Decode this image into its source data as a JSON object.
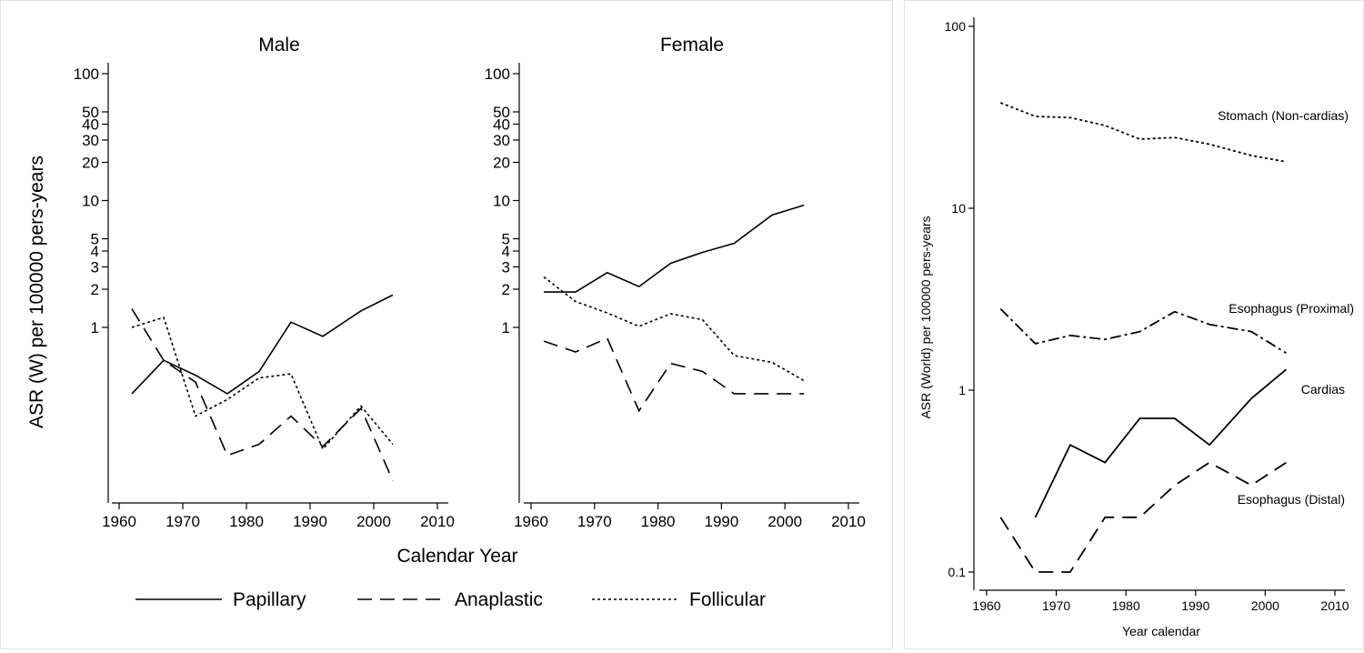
{
  "chart_data": [
    {
      "type": "line",
      "y_scale": "log",
      "ylabel": "ASR (W) per 100000 pers-years",
      "xlabel": "Calendar Year",
      "xlim": [
        1960,
        2010
      ],
      "x_ticks": [
        1960,
        1970,
        1980,
        1990,
        2000,
        2010
      ],
      "y_ticks": [
        1,
        2,
        3,
        4,
        5,
        10,
        20,
        30,
        40,
        50,
        100
      ],
      "legend": {
        "placement": "bottom",
        "entries": [
          {
            "name": "Papillary",
            "dash": "solid"
          },
          {
            "name": "Anaplastic",
            "dash": "longdash"
          },
          {
            "name": "Follicular",
            "dash": "dotted"
          }
        ]
      },
      "panels": [
        {
          "title": "Male",
          "series": [
            {
              "name": "Papillary",
              "x": [
                1962,
                1967,
                1972,
                1977,
                1982,
                1987,
                1992,
                1998,
                2003
              ],
              "y": [
                0.3,
                0.55,
                0.42,
                0.3,
                0.45,
                1.1,
                0.85,
                1.35,
                1.8
              ]
            },
            {
              "name": "Anaplastic",
              "x": [
                1962,
                1967,
                1972,
                1977,
                1982,
                1987,
                1992,
                1998,
                2003
              ],
              "y": [
                1.4,
                0.55,
                0.37,
                0.098,
                0.12,
                0.2,
                0.115,
                0.23,
                0.062
              ]
            },
            {
              "name": "Follicular",
              "x": [
                1962,
                1967,
                1972,
                1977,
                1982,
                1987,
                1992,
                1998,
                2003
              ],
              "y": [
                1.0,
                1.2,
                0.2,
                0.27,
                0.4,
                0.43,
                0.11,
                0.24,
                0.12
              ]
            }
          ]
        },
        {
          "title": "Female",
          "series": [
            {
              "name": "Papillary",
              "x": [
                1962,
                1967,
                1972,
                1977,
                1982,
                1987,
                1992,
                1998,
                2003
              ],
              "y": [
                1.9,
                1.9,
                2.7,
                2.1,
                3.2,
                3.9,
                4.6,
                7.7,
                9.2
              ]
            },
            {
              "name": "Anaplastic",
              "x": [
                1962,
                1967,
                1972,
                1977,
                1982,
                1987,
                1992,
                1998,
                2003
              ],
              "y": [
                0.78,
                0.64,
                0.82,
                0.22,
                0.52,
                0.45,
                0.3,
                0.3,
                0.3
              ]
            },
            {
              "name": "Follicular",
              "x": [
                1962,
                1967,
                1972,
                1977,
                1982,
                1987,
                1992,
                1998,
                2003
              ],
              "y": [
                2.5,
                1.6,
                1.3,
                1.02,
                1.28,
                1.15,
                0.6,
                0.53,
                0.38
              ]
            }
          ]
        }
      ]
    },
    {
      "type": "line",
      "y_scale": "log",
      "ylabel": "ASR (World) per 100000 pers-years",
      "xlabel": "Year calendar",
      "xlim": [
        1960,
        2010
      ],
      "ylim": [
        0.1,
        100
      ],
      "x_ticks": [
        1960,
        1970,
        1980,
        1990,
        2000,
        2010
      ],
      "y_ticks": [
        0.1,
        1,
        10,
        100
      ],
      "y_tick_labels": [
        "0.1",
        "1",
        "10",
        "100"
      ],
      "series": [
        {
          "name": "Stomach (Non-cardias)",
          "dash": "dotted",
          "x": [
            1962,
            1967,
            1972,
            1977,
            1982,
            1987,
            1992,
            1998,
            2003
          ],
          "y": [
            38,
            32,
            31.5,
            28.5,
            24,
            24.5,
            22.5,
            19.5,
            18
          ]
        },
        {
          "name": "Esophagus (Proximal)",
          "dash": "dashdot",
          "x": [
            1962,
            1967,
            1972,
            1977,
            1982,
            1987,
            1992,
            1998,
            2003
          ],
          "y": [
            2.8,
            1.8,
            2.0,
            1.9,
            2.1,
            2.7,
            2.3,
            2.1,
            1.6
          ]
        },
        {
          "name": "Cardias",
          "dash": "solid",
          "x": [
            1967,
            1972,
            1977,
            1982,
            1987,
            1992,
            1998,
            2003
          ],
          "y": [
            0.2,
            0.5,
            0.4,
            0.7,
            0.7,
            0.5,
            0.9,
            1.3
          ]
        },
        {
          "name": "Esophagus (Distal)",
          "dash": "longdash",
          "x": [
            1962,
            1967,
            1972,
            1977,
            1982,
            1987,
            1992,
            1998,
            2003
          ],
          "y": [
            0.2,
            0.1,
            0.1,
            0.2,
            0.2,
            0.3,
            0.4,
            0.3,
            0.4
          ]
        }
      ]
    }
  ]
}
